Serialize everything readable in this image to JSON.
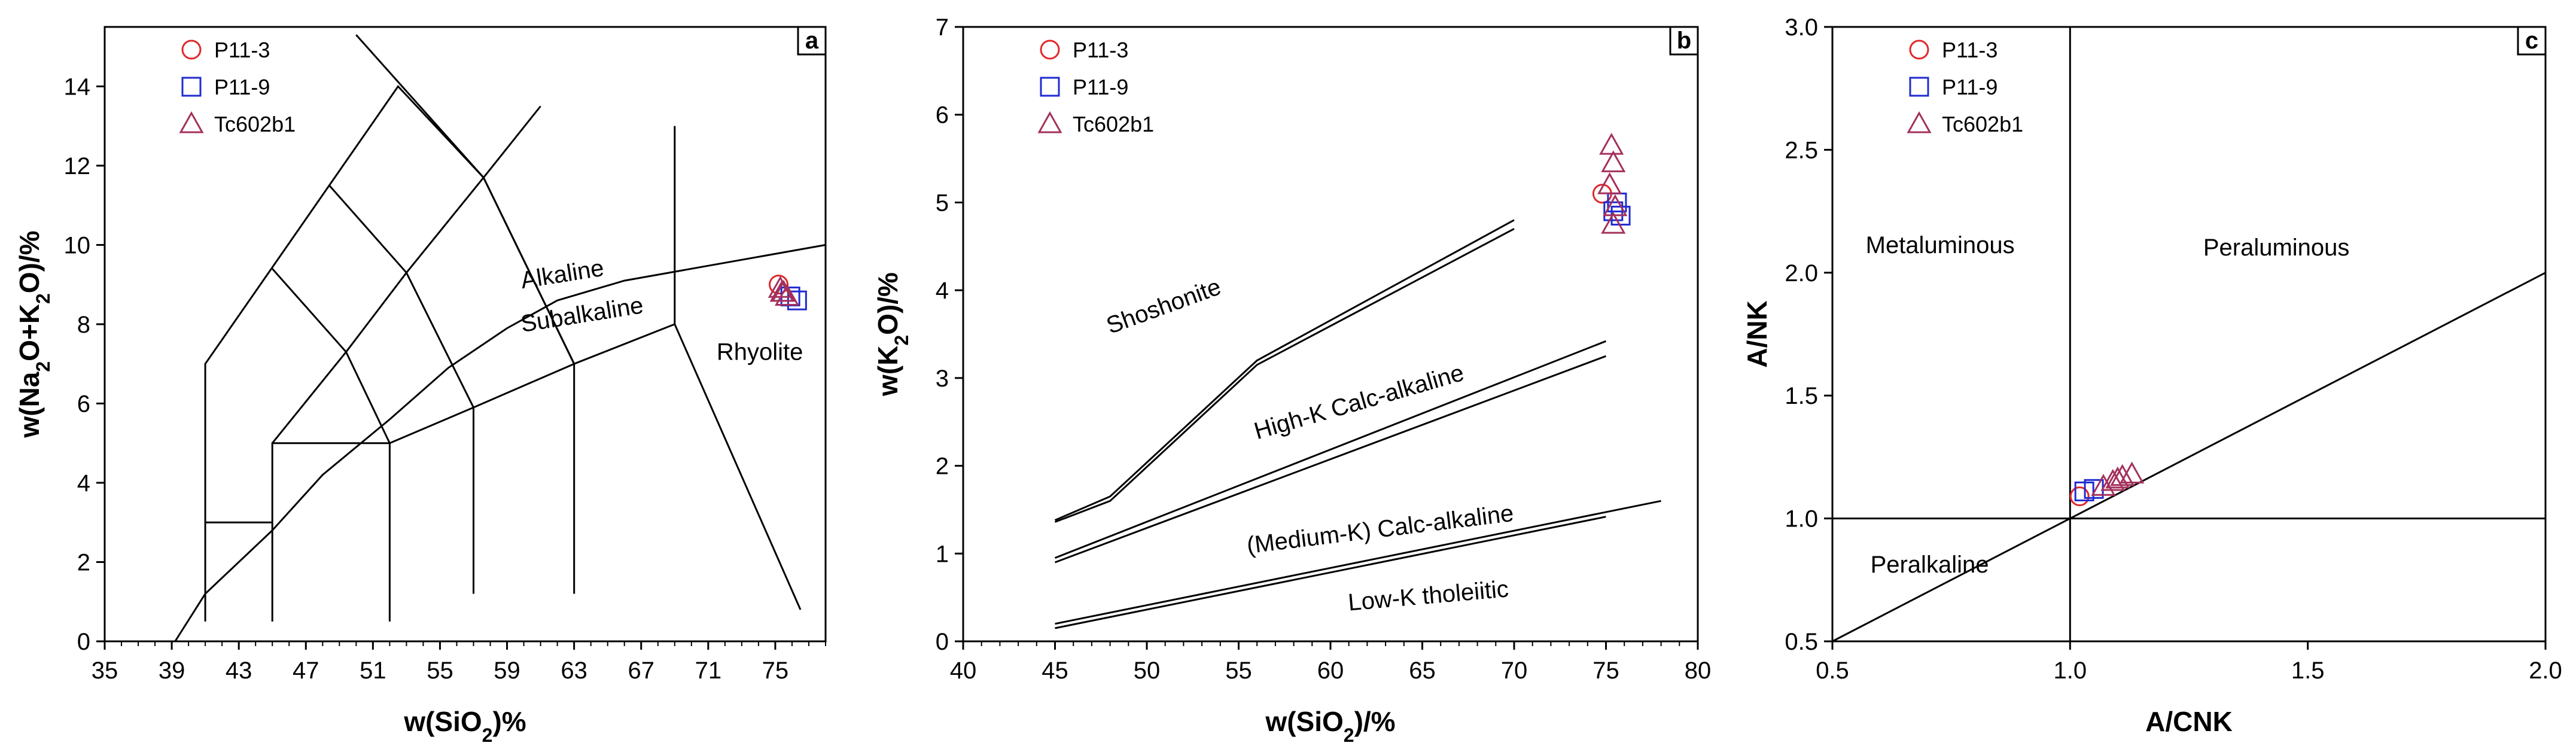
{
  "colors": {
    "P11-3": "#e0282a",
    "P11-9": "#1f2bd1",
    "Tc602b1": "#a4305c"
  },
  "chart_data": [
    {
      "type": "scatter",
      "panel": "a",
      "title": "",
      "xlabel_pre": "w(SiO",
      "xlabel_sub": "2",
      "xlabel_post": ")%",
      "ylabel_parts": [
        "w(Na",
        "2",
        "O+K",
        "2",
        "O)/%"
      ],
      "xlim": [
        35,
        78
      ],
      "ylim": [
        0,
        15.5
      ],
      "xticks": [
        35,
        39,
        43,
        47,
        51,
        55,
        59,
        63,
        67,
        71,
        75
      ],
      "xticklabels": [
        "35",
        "39",
        "43",
        "47",
        "51",
        "55",
        "59",
        "63",
        "67",
        "71",
        "75"
      ],
      "yticks": [
        0,
        2,
        4,
        6,
        8,
        10,
        12,
        14
      ],
      "yticklabels": [
        "0",
        "2",
        "4",
        "6",
        "8",
        "10",
        "12",
        "14"
      ],
      "boundaries": [
        [
          [
            41,
            0.5
          ],
          [
            41,
            7
          ],
          [
            52.5,
            14
          ],
          [
            57.6,
            11.7
          ],
          [
            63,
            7
          ],
          [
            69,
            8
          ]
        ],
        [
          [
            45,
            0.5
          ],
          [
            45,
            5
          ],
          [
            52,
            5
          ],
          [
            52,
            0.5
          ]
        ],
        [
          [
            41,
            3
          ],
          [
            45,
            3
          ]
        ],
        [
          [
            45,
            5
          ],
          [
            49.4,
            7.3
          ],
          [
            53,
            9.3
          ],
          [
            57.6,
            11.7
          ],
          [
            61,
            13.5
          ]
        ],
        [
          [
            52,
            5
          ],
          [
            49.4,
            7.3
          ],
          [
            45,
            9.4
          ]
        ],
        [
          [
            52,
            5
          ],
          [
            57,
            5.9
          ],
          [
            57,
            1.2
          ]
        ],
        [
          [
            57,
            5.9
          ],
          [
            53,
            9.3
          ],
          [
            48.4,
            11.5
          ]
        ],
        [
          [
            63,
            7
          ],
          [
            63,
            1.2
          ]
        ],
        [
          [
            57,
            5.9
          ],
          [
            63,
            7
          ]
        ],
        [
          [
            63,
            7
          ],
          [
            57.6,
            11.7
          ],
          [
            50,
            15.3
          ]
        ],
        [
          [
            69,
            8
          ],
          [
            69,
            13
          ]
        ],
        [
          [
            69,
            8
          ],
          [
            76.5,
            0.8
          ]
        ],
        [
          [
            39.2,
            0
          ],
          [
            41,
            1.2
          ],
          [
            45,
            2.8
          ],
          [
            48,
            4.2
          ],
          [
            52,
            5.6
          ],
          [
            55.5,
            6.9
          ],
          [
            59,
            7.9
          ],
          [
            62,
            8.6
          ],
          [
            66,
            9.1
          ],
          [
            70,
            9.4
          ],
          [
            78,
            10
          ]
        ]
      ],
      "field_labels": [
        {
          "text": "Alkaline",
          "x": 59.9,
          "y": 8.9,
          "rotate": -9
        },
        {
          "text": "Subalkaline",
          "x": 59.9,
          "y": 7.8,
          "rotate": -9
        },
        {
          "text": "Rhyolite",
          "x": 71.5,
          "y": 7.1,
          "rotate": 0
        }
      ],
      "series": [
        {
          "name": "P11-3",
          "marker": "circle",
          "points": [
            [
              75.2,
              9.0
            ]
          ]
        },
        {
          "name": "P11-9",
          "marker": "square",
          "points": [
            [
              75.9,
              8.7
            ],
            [
              76.3,
              8.6
            ]
          ]
        },
        {
          "name": "Tc602b1",
          "marker": "triangle",
          "points": [
            [
              75.3,
              8.9
            ],
            [
              75.5,
              8.8
            ],
            [
              75.7,
              8.7
            ],
            [
              75.4,
              8.8
            ]
          ]
        }
      ],
      "legend": [
        "P11-3",
        "P11-9",
        "Tc602b1"
      ],
      "panel_label": "a"
    },
    {
      "type": "scatter",
      "panel": "b",
      "title": "",
      "xlabel_pre": "w(SiO",
      "xlabel_sub": "2",
      "xlabel_post": ")/%",
      "ylabel_parts": [
        "w(K",
        "2",
        "O)/%"
      ],
      "xlim": [
        40,
        80
      ],
      "ylim": [
        0,
        7
      ],
      "xticks": [
        40,
        45,
        50,
        55,
        60,
        65,
        70,
        75,
        80
      ],
      "xticklabels": [
        "40",
        "45",
        "50",
        "55",
        "60",
        "65",
        "70",
        "75",
        "80"
      ],
      "yticks": [
        0,
        1,
        2,
        3,
        4,
        5,
        6,
        7
      ],
      "yticklabels": [
        "0",
        "1",
        "2",
        "3",
        "4",
        "5",
        "6",
        "7"
      ],
      "boundaries": [
        [
          [
            45,
            1.38
          ],
          [
            48,
            1.65
          ],
          [
            56,
            3.2
          ],
          [
            70,
            4.8
          ]
        ],
        [
          [
            45,
            1.36
          ],
          [
            48,
            1.6
          ],
          [
            56,
            3.15
          ],
          [
            70,
            4.7
          ]
        ],
        [
          [
            45,
            0.95
          ],
          [
            75,
            3.42
          ]
        ],
        [
          [
            45,
            0.9
          ],
          [
            75,
            3.25
          ]
        ],
        [
          [
            45,
            0.2
          ],
          [
            78,
            1.6
          ]
        ],
        [
          [
            45,
            0.15
          ],
          [
            75,
            1.42
          ]
        ]
      ],
      "field_labels": [
        {
          "text": "Shoshonite",
          "x": 48,
          "y": 3.5,
          "rotate": -20
        },
        {
          "text": "High-K Calc-alkaline",
          "x": 56,
          "y": 2.3,
          "rotate": -16
        },
        {
          "text": "(Medium-K) Calc-alkaline",
          "x": 55.5,
          "y": 1.0,
          "rotate": -7
        },
        {
          "text": "Low-K tholeiitic",
          "x": 61,
          "y": 0.35,
          "rotate": -5
        }
      ],
      "series": [
        {
          "name": "P11-3",
          "marker": "circle",
          "points": [
            [
              74.8,
              5.1
            ]
          ]
        },
        {
          "name": "P11-9",
          "marker": "square",
          "points": [
            [
              75.6,
              5.0
            ],
            [
              75.8,
              4.85
            ],
            [
              75.4,
              4.9
            ]
          ]
        },
        {
          "name": "Tc602b1",
          "marker": "triangle",
          "points": [
            [
              75.3,
              5.65
            ],
            [
              75.4,
              5.45
            ],
            [
              75.2,
              5.2
            ],
            [
              75.5,
              4.95
            ],
            [
              75.4,
              4.75
            ]
          ]
        }
      ],
      "legend": [
        "P11-3",
        "P11-9",
        "Tc602b1"
      ],
      "panel_label": "b"
    },
    {
      "type": "scatter",
      "panel": "c",
      "title": "",
      "xlabel_pre": "A/CNK",
      "xlabel_sub": "",
      "xlabel_post": "",
      "ylabel_parts": [
        "A/NK"
      ],
      "xlim": [
        0.5,
        2.0
      ],
      "ylim": [
        0.5,
        3.0
      ],
      "xticks": [
        0.5,
        1.0,
        1.5,
        2.0
      ],
      "xticklabels": [
        "0.5",
        "1.0",
        "1.5",
        "2.0"
      ],
      "yticks": [
        0.5,
        1.0,
        1.5,
        2.0,
        2.5,
        3.0
      ],
      "yticklabels": [
        "0.5",
        "1.0",
        "1.5",
        "2.0",
        "2.5",
        "3.0"
      ],
      "boundaries": [
        [
          [
            1.0,
            0.5
          ],
          [
            1.0,
            3.0
          ]
        ],
        [
          [
            0.5,
            1.0
          ],
          [
            2.0,
            1.0
          ]
        ],
        [
          [
            0.5,
            0.5
          ],
          [
            2.0,
            2.0
          ]
        ]
      ],
      "field_labels": [
        {
          "text": "Metaluminous",
          "x": 0.57,
          "y": 2.08,
          "rotate": 0
        },
        {
          "text": "Peraluminous",
          "x": 1.28,
          "y": 2.07,
          "rotate": 0
        },
        {
          "text": "Peralkaline",
          "x": 0.58,
          "y": 0.78,
          "rotate": 0
        }
      ],
      "series": [
        {
          "name": "P11-3",
          "marker": "circle",
          "points": [
            [
              1.02,
              1.09
            ]
          ]
        },
        {
          "name": "P11-9",
          "marker": "square",
          "points": [
            [
              1.03,
              1.11
            ],
            [
              1.05,
              1.12
            ]
          ]
        },
        {
          "name": "Tc602b1",
          "marker": "triangle",
          "points": [
            [
              1.07,
              1.13
            ],
            [
              1.09,
              1.15
            ],
            [
              1.11,
              1.17
            ],
            [
              1.13,
              1.18
            ],
            [
              1.1,
              1.16
            ]
          ]
        }
      ],
      "legend": [
        "P11-3",
        "P11-9",
        "Tc602b1"
      ],
      "panel_label": "c"
    }
  ]
}
